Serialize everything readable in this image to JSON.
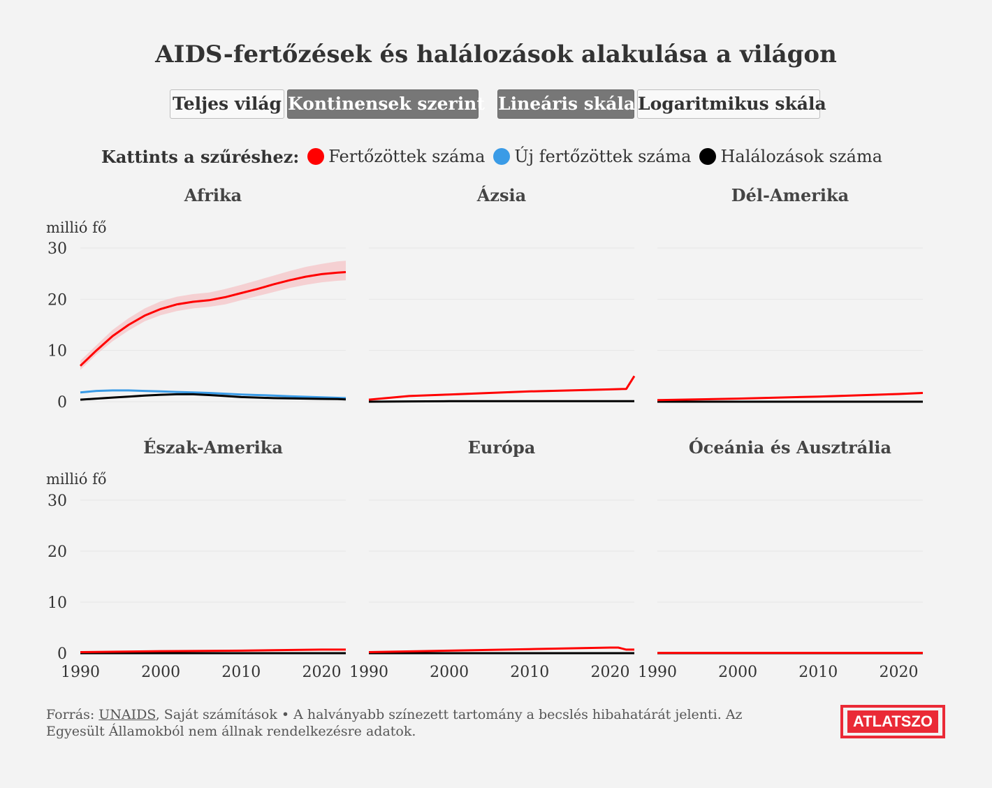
{
  "title": "AIDS-fertőzések és halálozások alakulása a világon",
  "buttons": {
    "world": "Teljes világ",
    "continents": "Kontinensek szerint",
    "linear": "Lineáris skála",
    "log": "Logaritmikus skála"
  },
  "legend": {
    "lead": "Kattints a szűréshez:",
    "items": [
      "Fertőzöttek száma",
      "Új fertőzöttek száma",
      "Halálozások száma"
    ]
  },
  "colors": {
    "infected": "#ff0000",
    "new_infected": "#3a9be6",
    "deaths": "#000000",
    "band": "#f5c7c9",
    "grid": "#e6e6e6",
    "accent": "#ea2a36"
  },
  "footer": {
    "source_prefix": "Forrás: ",
    "source_link": "UNAIDS",
    "source_rest": ", Saját számítások • A halványabb színezett tartomány a becslés hibahatárát jelenti. Az Egyesült Államokból nem állnak rendelkezésre adatok."
  },
  "logo": "ATLATSZO",
  "chart_data": {
    "type": "line",
    "unit_label": "millió fő",
    "xlim": [
      1990,
      2023
    ],
    "ylim": [
      0,
      30
    ],
    "x_ticks": [
      1990,
      2000,
      2010,
      2020
    ],
    "y_ticks": [
      0,
      10,
      20,
      30
    ],
    "grid": true,
    "series_names": [
      "Fertőzöttek száma",
      "Új fertőzöttek száma",
      "Halálozások száma"
    ],
    "panels": [
      {
        "name": "Afrika",
        "x": [
          1990,
          1992,
          1994,
          1996,
          1998,
          2000,
          2002,
          2004,
          2006,
          2008,
          2010,
          2012,
          2014,
          2016,
          2018,
          2020,
          2022,
          2023
        ],
        "infected": [
          7.0,
          10.0,
          12.8,
          15.0,
          16.8,
          18.1,
          19.0,
          19.5,
          19.8,
          20.4,
          21.2,
          22.0,
          22.9,
          23.7,
          24.4,
          24.9,
          25.2,
          25.3
        ],
        "infected_low": [
          6.2,
          9.2,
          11.8,
          13.9,
          15.7,
          16.9,
          17.7,
          18.2,
          18.5,
          19.0,
          19.8,
          20.6,
          21.4,
          22.2,
          22.8,
          23.3,
          23.6,
          23.7
        ],
        "infected_high": [
          8.0,
          11.0,
          14.0,
          16.3,
          18.2,
          19.6,
          20.5,
          21.0,
          21.3,
          22.0,
          22.8,
          23.7,
          24.6,
          25.5,
          26.3,
          26.9,
          27.4,
          27.5
        ],
        "new_infected": [
          1.8,
          2.1,
          2.2,
          2.2,
          2.1,
          2.0,
          1.9,
          1.8,
          1.7,
          1.55,
          1.4,
          1.3,
          1.2,
          1.05,
          0.95,
          0.85,
          0.75,
          0.7
        ],
        "deaths": [
          0.4,
          0.6,
          0.8,
          1.0,
          1.2,
          1.35,
          1.45,
          1.45,
          1.3,
          1.1,
          0.9,
          0.8,
          0.7,
          0.65,
          0.6,
          0.55,
          0.5,
          0.45
        ]
      },
      {
        "name": "Ázsia",
        "x": [
          1990,
          1995,
          2000,
          2005,
          2010,
          2015,
          2020,
          2022,
          2023
        ],
        "infected": [
          0.4,
          1.1,
          1.4,
          1.7,
          2.0,
          2.2,
          2.4,
          2.5,
          5.0
        ],
        "deaths": [
          0.0,
          0.05,
          0.1,
          0.1,
          0.1,
          0.1,
          0.1,
          0.1,
          0.1
        ]
      },
      {
        "name": "Dél-Amerika",
        "x": [
          1990,
          2000,
          2010,
          2020,
          2023
        ],
        "infected": [
          0.3,
          0.6,
          1.0,
          1.5,
          1.7
        ],
        "deaths": [
          0.0,
          0.0,
          0.0,
          0.0,
          0.0
        ]
      },
      {
        "name": "Észak-Amerika",
        "x": [
          1990,
          2000,
          2010,
          2020,
          2023
        ],
        "infected": [
          0.2,
          0.4,
          0.5,
          0.7,
          0.7
        ],
        "deaths": [
          0.0,
          0.0,
          0.0,
          0.0,
          0.0
        ]
      },
      {
        "name": "Európa",
        "x": [
          1990,
          2000,
          2010,
          2020,
          2021,
          2022,
          2023
        ],
        "infected": [
          0.2,
          0.5,
          0.8,
          1.1,
          1.1,
          0.7,
          0.7
        ],
        "deaths": [
          0.0,
          0.0,
          0.0,
          0.0,
          0.0,
          0.0,
          0.0
        ]
      },
      {
        "name": "Óceánia és Ausztrália",
        "x": [
          1990,
          2000,
          2010,
          2020,
          2023
        ],
        "infected": [
          0.05,
          0.05,
          0.05,
          0.06,
          0.06
        ],
        "deaths": [
          0.0,
          0.0,
          0.0,
          0.0,
          0.0
        ]
      }
    ]
  }
}
